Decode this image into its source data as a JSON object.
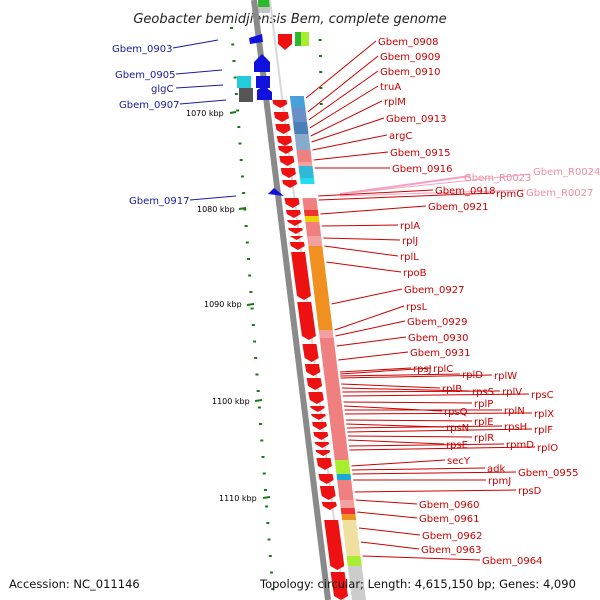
{
  "title": "Geobacter bemidjiensis Bem, complete genome",
  "footer": {
    "accession": "Accession: NC_011146",
    "topology": "Topology: circular; Length: 4,615,150 bp; Genes: 4,090"
  },
  "ticks": [
    "1070 kbp",
    "1080 kbp",
    "1090 kbp",
    "1100 kbp",
    "1110 kbp"
  ],
  "left_labels": [
    "Gbem_0903",
    "Gbem_0905",
    "glgC",
    "Gbem_0907",
    "Gbem_0917"
  ],
  "right_labels": [
    "Gbem_0908",
    "Gbem_0909",
    "Gbem_0910",
    "truA",
    "rplM",
    "Gbem_0913",
    "argC",
    "Gbem_0915",
    "Gbem_0916",
    "Gbem_0918",
    "rpmG",
    "Gbem_0921",
    "rplA",
    "rplJ",
    "rplL",
    "rpoB",
    "Gbem_0927",
    "rpsL",
    "Gbem_0929",
    "Gbem_0930",
    "Gbem_0931",
    "rpsJ",
    "rplC",
    "rplD",
    "rplW",
    "rplB",
    "rpsS",
    "rplV",
    "rpsC",
    "rplP",
    "rpsQ",
    "rplN",
    "rplX",
    "rplE",
    "rpsN",
    "rpsH",
    "rplF",
    "rplR",
    "rpsE",
    "rpmD",
    "rplO",
    "secY",
    "adk",
    "Gbem_0955",
    "rpmJ",
    "rpsD",
    "Gbem_0960",
    "Gbem_0961",
    "Gbem_0962",
    "Gbem_0963",
    "Gbem_0964"
  ],
  "rna_labels": [
    "Gbem_R0023",
    "Gbem_R0024",
    "Gbem_R0027"
  ],
  "colors": {
    "backbone": "#8a8a8a",
    "forward_gene": "#ee1111",
    "reverse_gene": "#1111dd",
    "rna": "#f6a0c0",
    "label_left": "#1a1aa0",
    "label_right": "#cc0000",
    "gc_skew": "#1a7a1a"
  }
}
